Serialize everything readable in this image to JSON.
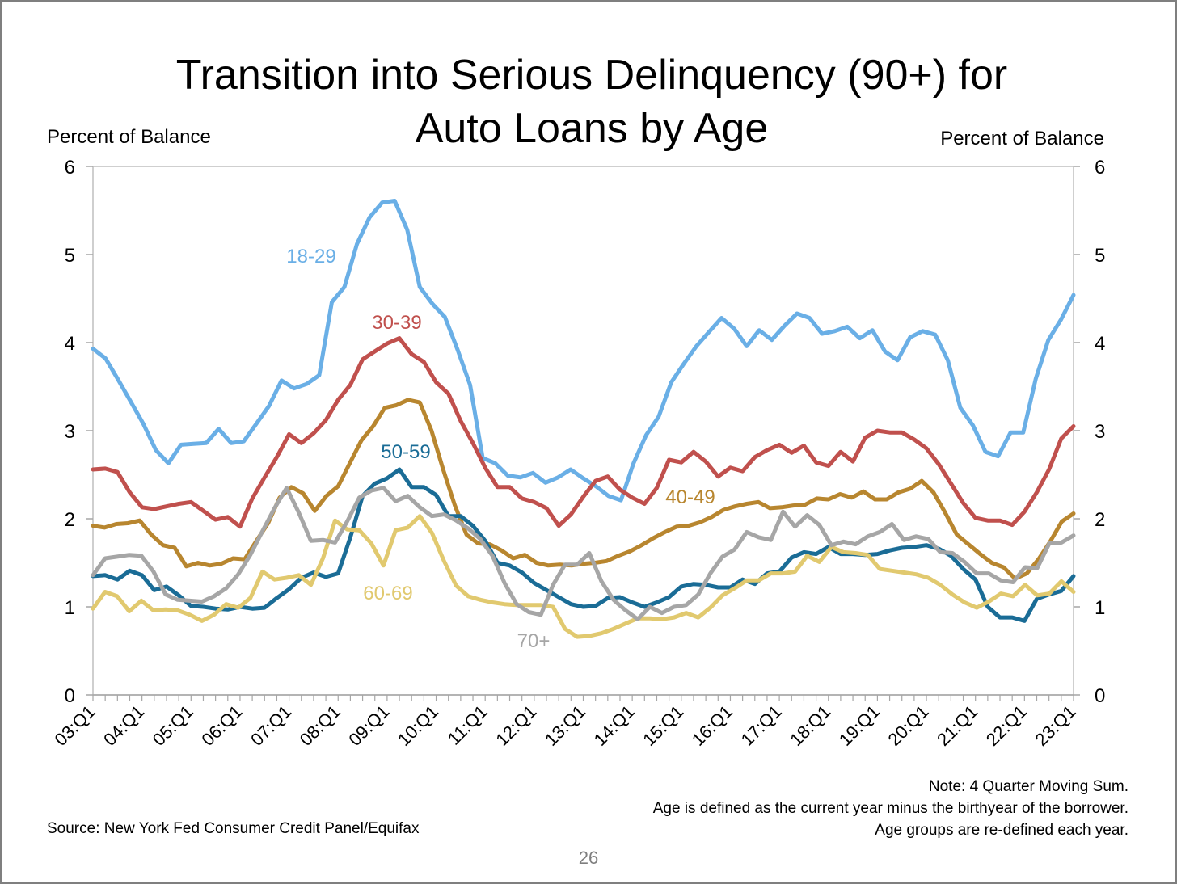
{
  "page": {
    "title": "Transition into Serious Delinquency (90+) for\nAuto Loans by Age",
    "axis_title_left": "Percent of Balance",
    "axis_title_right": "Percent of Balance",
    "source": "Source: New York Fed Consumer Credit Panel/Equifax",
    "notes": [
      "Note: 4 Quarter Moving Sum.",
      "Age is defined as the current year minus the birthyear of the borrower.",
      "Age groups are re-defined each year."
    ],
    "page_number": "26"
  },
  "chart_data": {
    "type": "line",
    "title": "Transition into Serious Delinquency (90+) for Auto Loans by Age",
    "ylabel": "Percent of Balance",
    "y2label": "Percent of Balance",
    "ylim": [
      0,
      6
    ],
    "yticks": [
      "0",
      "1",
      "2",
      "3",
      "4",
      "5",
      "6"
    ],
    "x_tick_labels": [
      "03:Q1",
      "04:Q1",
      "05:Q1",
      "06:Q1",
      "07:Q1",
      "08:Q1",
      "09:Q1",
      "10:Q1",
      "11:Q1",
      "12:Q1",
      "13:Q1",
      "14:Q1",
      "15:Q1",
      "16:Q1",
      "17:Q1",
      "18:Q1",
      "19:Q1",
      "20:Q1",
      "21:Q1",
      "22:Q1",
      "23:Q1"
    ],
    "x_start": "2003:Q1",
    "frequency": "quarterly",
    "grid": false,
    "series": [
      {
        "name": "18-29",
        "color": "#6aafe6",
        "values": [
          3.93,
          3.82,
          3.58,
          3.33,
          3.08,
          2.78,
          2.63,
          2.84,
          2.85,
          2.86,
          3.02,
          2.86,
          2.88,
          3.08,
          3.28,
          3.57,
          3.48,
          3.53,
          3.63,
          4.46,
          4.63,
          5.12,
          5.42,
          5.59,
          5.61,
          5.28,
          4.63,
          4.44,
          4.29,
          3.92,
          3.52,
          2.69,
          2.63,
          2.49,
          2.47,
          2.52,
          2.41,
          2.47,
          2.56,
          2.46,
          2.37,
          2.26,
          2.21,
          2.63,
          2.95,
          3.16,
          3.55,
          3.76,
          3.96,
          4.12,
          4.28,
          4.16,
          3.96,
          4.14,
          4.03,
          4.19,
          4.33,
          4.28,
          4.1,
          4.13,
          4.18,
          4.05,
          4.14,
          3.9,
          3.8,
          4.06,
          4.13,
          4.09,
          3.8,
          3.26,
          3.06,
          2.76,
          2.71,
          2.98,
          2.98,
          3.59,
          4.03,
          4.26,
          4.54
        ],
        "label_pos": [
          383,
          314
        ]
      },
      {
        "name": "30-39",
        "color": "#c0504d",
        "values": [
          2.56,
          2.57,
          2.53,
          2.3,
          2.13,
          2.11,
          2.14,
          2.17,
          2.19,
          2.09,
          1.99,
          2.02,
          1.91,
          2.23,
          2.47,
          2.7,
          2.96,
          2.86,
          2.97,
          3.12,
          3.35,
          3.52,
          3.81,
          3.9,
          3.99,
          4.05,
          3.87,
          3.78,
          3.55,
          3.42,
          3.11,
          2.86,
          2.58,
          2.36,
          2.36,
          2.23,
          2.19,
          2.12,
          1.92,
          2.05,
          2.25,
          2.43,
          2.48,
          2.33,
          2.24,
          2.17,
          2.35,
          2.67,
          2.64,
          2.76,
          2.65,
          2.48,
          2.58,
          2.54,
          2.7,
          2.78,
          2.84,
          2.75,
          2.83,
          2.64,
          2.6,
          2.76,
          2.65,
          2.92,
          3.0,
          2.98,
          2.98,
          2.9,
          2.8,
          2.62,
          2.4,
          2.18,
          2.01,
          1.98,
          1.98,
          1.93,
          2.08,
          2.3,
          2.56,
          2.91,
          3.05
        ],
        "label_pos": [
          489,
          396
        ]
      },
      {
        "name": "40-49",
        "color": "#b8862f",
        "values": [
          1.92,
          1.9,
          1.94,
          1.95,
          1.98,
          1.82,
          1.7,
          1.67,
          1.46,
          1.5,
          1.47,
          1.49,
          1.55,
          1.54,
          1.75,
          1.95,
          2.24,
          2.36,
          2.29,
          2.09,
          2.26,
          2.37,
          2.63,
          2.89,
          3.05,
          3.26,
          3.29,
          3.35,
          3.32,
          3.0,
          2.56,
          2.15,
          1.82,
          1.72,
          1.71,
          1.64,
          1.55,
          1.59,
          1.5,
          1.47,
          1.48,
          1.47,
          1.49,
          1.5,
          1.52,
          1.58,
          1.63,
          1.7,
          1.78,
          1.85,
          1.91,
          1.92,
          1.96,
          2.02,
          2.1,
          2.14,
          2.17,
          2.19,
          2.12,
          2.13,
          2.15,
          2.16,
          2.23,
          2.22,
          2.28,
          2.24,
          2.31,
          2.22,
          2.22,
          2.3,
          2.34,
          2.43,
          2.3,
          2.07,
          1.82,
          1.71,
          1.6,
          1.5,
          1.45,
          1.32,
          1.38,
          1.54,
          1.74,
          1.97,
          2.06
        ],
        "label_pos": [
          852,
          612
        ]
      },
      {
        "name": "50-59",
        "color": "#1a6c96",
        "values": [
          1.35,
          1.36,
          1.31,
          1.41,
          1.36,
          1.19,
          1.23,
          1.13,
          1.01,
          1.0,
          0.98,
          0.97,
          1.0,
          0.98,
          0.99,
          1.1,
          1.2,
          1.33,
          1.39,
          1.34,
          1.38,
          1.79,
          2.26,
          2.4,
          2.46,
          2.56,
          2.36,
          2.36,
          2.27,
          2.03,
          2.03,
          1.92,
          1.75,
          1.5,
          1.47,
          1.39,
          1.27,
          1.19,
          1.11,
          1.03,
          1.0,
          1.01,
          1.1,
          1.11,
          1.05,
          1.0,
          1.05,
          1.11,
          1.23,
          1.26,
          1.25,
          1.22,
          1.22,
          1.31,
          1.26,
          1.38,
          1.4,
          1.56,
          1.62,
          1.6,
          1.68,
          1.6,
          1.6,
          1.59,
          1.6,
          1.64,
          1.67,
          1.68,
          1.7,
          1.66,
          1.58,
          1.43,
          1.31,
          1.0,
          0.88,
          0.88,
          0.84,
          1.09,
          1.14,
          1.18,
          1.35
        ],
        "label_pos": [
          500,
          556
        ]
      },
      {
        "name": "60-69",
        "color": "#e1c96f",
        "values": [
          0.98,
          1.17,
          1.12,
          0.95,
          1.07,
          0.96,
          0.97,
          0.96,
          0.91,
          0.84,
          0.91,
          1.03,
          0.99,
          1.1,
          1.4,
          1.31,
          1.33,
          1.36,
          1.25,
          1.55,
          1.98,
          1.88,
          1.87,
          1.72,
          1.47,
          1.87,
          1.9,
          2.03,
          1.84,
          1.52,
          1.24,
          1.12,
          1.08,
          1.05,
          1.03,
          1.02,
          1.02,
          1.02,
          1.0,
          0.75,
          0.66,
          0.67,
          0.7,
          0.75,
          0.81,
          0.87,
          0.87,
          0.86,
          0.88,
          0.93,
          0.88,
          0.99,
          1.13,
          1.21,
          1.3,
          1.3,
          1.38,
          1.38,
          1.4,
          1.58,
          1.51,
          1.68,
          1.62,
          1.61,
          1.59,
          1.43,
          1.41,
          1.39,
          1.37,
          1.33,
          1.25,
          1.14,
          1.05,
          0.99,
          1.06,
          1.15,
          1.12,
          1.25,
          1.13,
          1.15,
          1.29,
          1.17
        ],
        "label_pos": [
          478,
          731
        ]
      },
      {
        "name": "70+",
        "color": "#a6a6a6",
        "values": [
          1.36,
          1.55,
          1.57,
          1.59,
          1.58,
          1.4,
          1.14,
          1.08,
          1.07,
          1.06,
          1.12,
          1.21,
          1.37,
          1.59,
          1.86,
          2.12,
          2.35,
          2.07,
          1.75,
          1.76,
          1.73,
          1.97,
          2.24,
          2.32,
          2.35,
          2.2,
          2.26,
          2.13,
          2.03,
          2.05,
          1.98,
          1.89,
          1.77,
          1.58,
          1.27,
          1.03,
          0.94,
          0.91,
          1.25,
          1.48,
          1.48,
          1.61,
          1.29,
          1.08,
          0.96,
          0.86,
          1.0,
          0.93,
          1.0,
          1.02,
          1.14,
          1.38,
          1.57,
          1.65,
          1.85,
          1.79,
          1.76,
          2.08,
          1.91,
          2.04,
          1.93,
          1.7,
          1.74,
          1.71,
          1.8,
          1.85,
          1.94,
          1.76,
          1.8,
          1.77,
          1.62,
          1.61,
          1.51,
          1.38,
          1.38,
          1.3,
          1.28,
          1.45,
          1.44,
          1.72,
          1.73,
          1.81
        ],
        "label_pos": [
          658,
          790
        ]
      }
    ]
  }
}
